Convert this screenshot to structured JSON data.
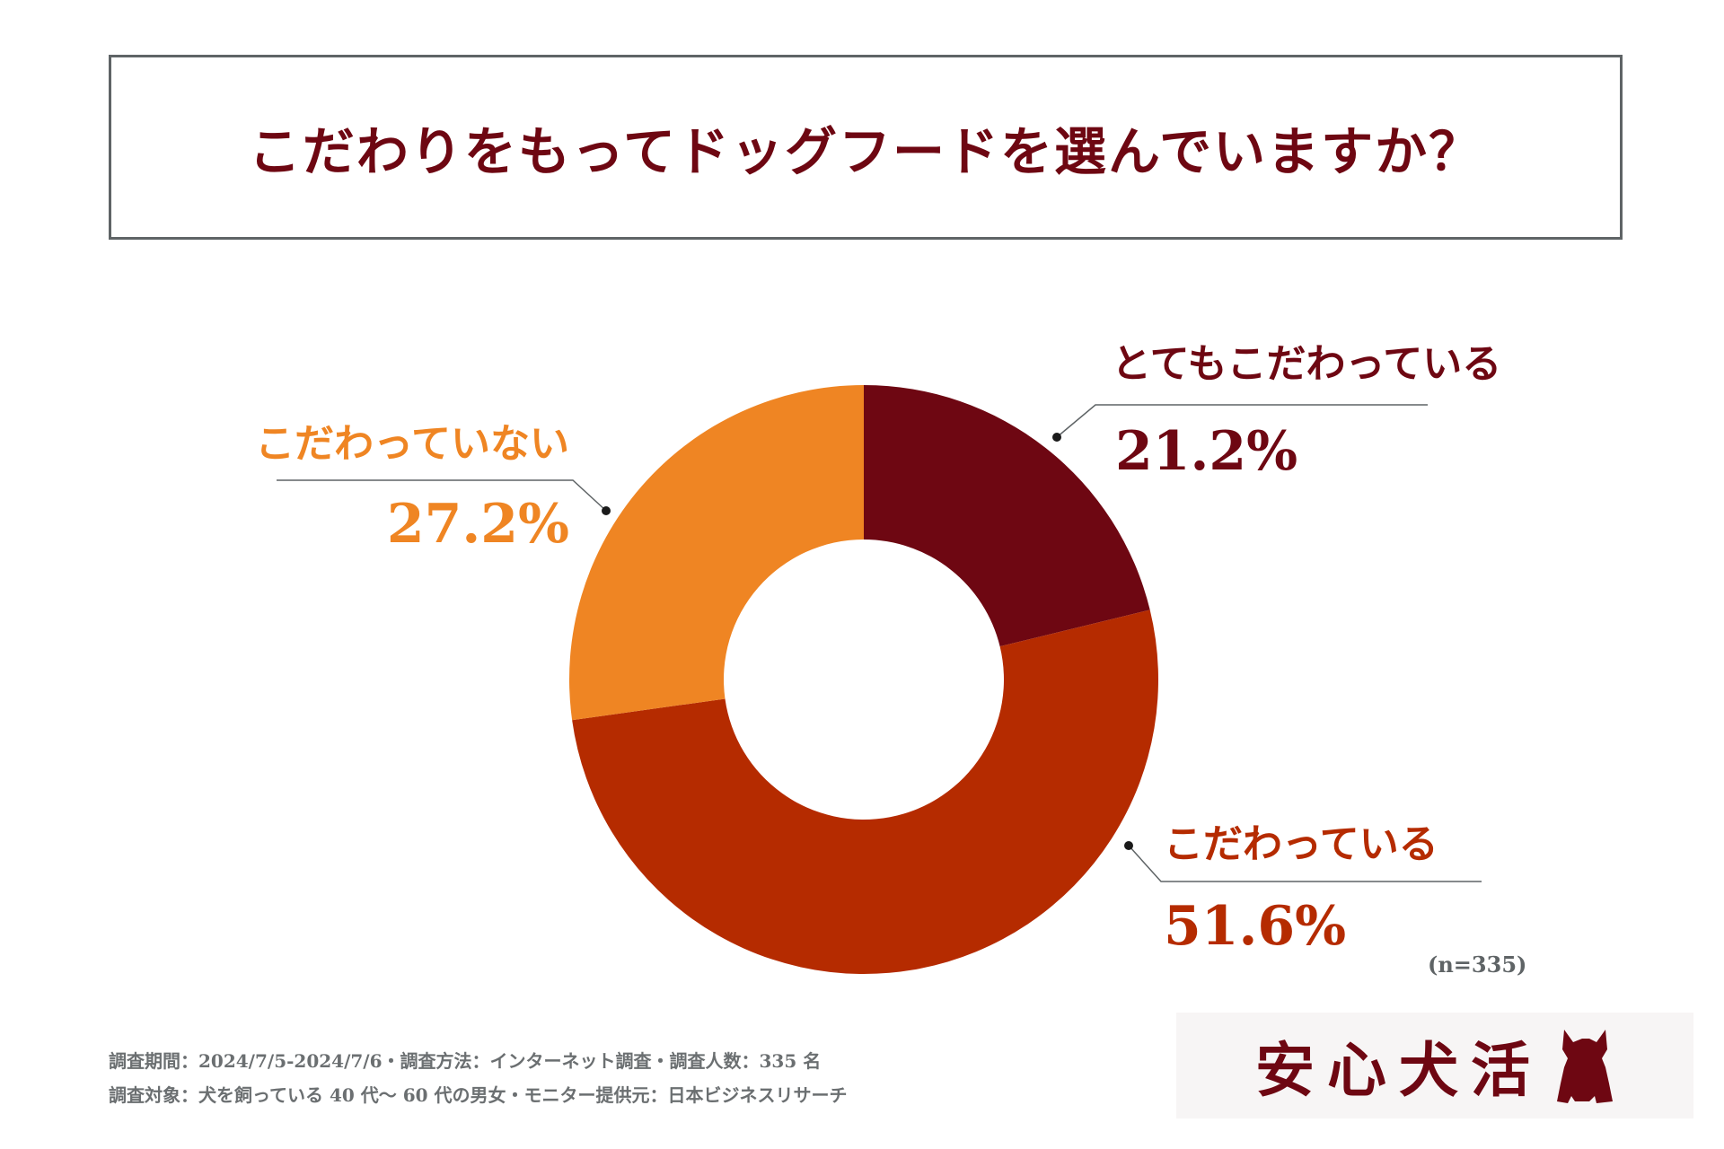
{
  "title": "こだわりをもってドッグフードを選んでいますか？",
  "chart_data": {
    "type": "pie",
    "donut": true,
    "slices": [
      {
        "label": "とてもこだわっている",
        "value": 21.2,
        "display": "21.2%",
        "color": "#6e0712"
      },
      {
        "label": "こだわっている",
        "value": 51.6,
        "display": "51.6%",
        "color": "#b52b00"
      },
      {
        "label": "こだわっていない",
        "value": 27.2,
        "display": "27.2%",
        "color": "#ef8523"
      }
    ]
  },
  "sample_size": "(n=335)",
  "footnotes": [
    "調査期間：2024/7/5-2024/7/6・調査方法：インターネット調査・調査人数：335 名",
    "調査対象：犬を飼っている 40 代〜 60 代の男女・モニター提供元：日本ビジネスリサーチ"
  ],
  "logo": {
    "text": "安心犬活",
    "icon": "dog-silhouette-icon"
  }
}
